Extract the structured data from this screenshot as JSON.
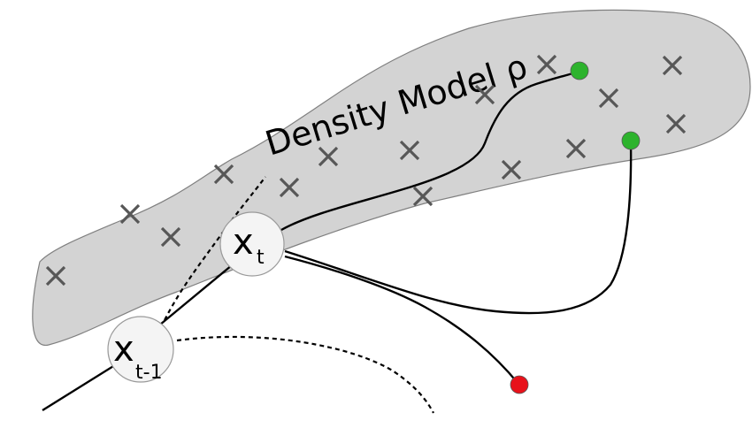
{
  "region": {
    "label": "Density Model ρ",
    "fill": "#d3d3d3"
  },
  "nodes": {
    "current": {
      "main": "x",
      "sub": "t"
    },
    "previous": {
      "main": "x",
      "sub": "t-1"
    }
  },
  "goals": {
    "reached_color": "#2db32d",
    "failed_color": "#e8121b"
  },
  "marker_icon": "cross-icon"
}
